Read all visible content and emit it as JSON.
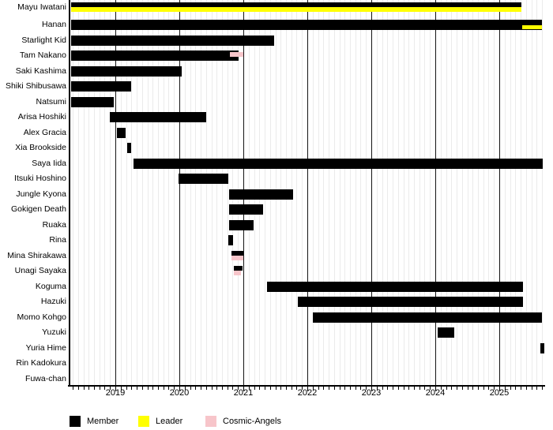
{
  "chart_data": {
    "type": "bar",
    "subtype": "membership-timeline-gantt",
    "title": "",
    "x_axis": {
      "unit": "year",
      "range": [
        2018.3,
        2025.7
      ],
      "ticks": [
        2019,
        2020,
        2021,
        2022,
        2023,
        2024,
        2025
      ],
      "minor_tick": "monthly",
      "grid": true
    },
    "legend": [
      {
        "key": "member",
        "label": "Member",
        "color": "#000000"
      },
      {
        "key": "leader",
        "label": "Leader",
        "color": "#ffff00"
      },
      {
        "key": "cosmic",
        "label": "Cosmic-Angels",
        "color": "#f7c5ca"
      }
    ],
    "legend_position": "bottom",
    "rows": [
      {
        "name": "Mayu Iwatani",
        "segments": [
          {
            "key": "member",
            "start": 2018.3,
            "end": 2025.35,
            "lane": "top"
          },
          {
            "key": "leader",
            "start": 2018.3,
            "end": 2025.35,
            "lane": "bottom"
          }
        ]
      },
      {
        "name": "Hanan",
        "segments": [
          {
            "key": "member",
            "start": 2018.3,
            "end": 2025.67,
            "lane": "full"
          },
          {
            "key": "leader",
            "start": 2025.36,
            "end": 2025.67,
            "lane": "inset-bottom"
          }
        ]
      },
      {
        "name": "Starlight Kid",
        "segments": [
          {
            "key": "member",
            "start": 2018.3,
            "end": 2021.48,
            "lane": "full"
          }
        ]
      },
      {
        "name": "Tam Nakano",
        "segments": [
          {
            "key": "member",
            "start": 2018.3,
            "end": 2020.93,
            "lane": "full"
          },
          {
            "key": "cosmic",
            "start": 2020.79,
            "end": 2021.0,
            "lane": "inset-mid"
          }
        ]
      },
      {
        "name": "Saki Kashima",
        "segments": [
          {
            "key": "member",
            "start": 2018.3,
            "end": 2020.04,
            "lane": "full"
          }
        ]
      },
      {
        "name": "Shiki Shibusawa",
        "segments": [
          {
            "key": "member",
            "start": 2018.3,
            "end": 2019.25,
            "lane": "full"
          }
        ]
      },
      {
        "name": "Natsumi",
        "segments": [
          {
            "key": "member",
            "start": 2018.3,
            "end": 2018.98,
            "lane": "full"
          }
        ]
      },
      {
        "name": "Arisa Hoshiki",
        "segments": [
          {
            "key": "member",
            "start": 2018.91,
            "end": 2020.42,
            "lane": "full"
          }
        ]
      },
      {
        "name": "Alex Gracia",
        "segments": [
          {
            "key": "member",
            "start": 2019.02,
            "end": 2019.16,
            "lane": "full"
          }
        ]
      },
      {
        "name": "Xia Brookside",
        "segments": [
          {
            "key": "member",
            "start": 2019.19,
            "end": 2019.25,
            "lane": "full"
          }
        ]
      },
      {
        "name": "Saya Iida",
        "segments": [
          {
            "key": "member",
            "start": 2019.28,
            "end": 2025.67,
            "lane": "full"
          }
        ]
      },
      {
        "name": "Itsuki Hoshino",
        "segments": [
          {
            "key": "member",
            "start": 2019.99,
            "end": 2020.77,
            "lane": "full"
          }
        ]
      },
      {
        "name": "Jungle Kyona",
        "segments": [
          {
            "key": "member",
            "start": 2020.78,
            "end": 2021.78,
            "lane": "full"
          }
        ]
      },
      {
        "name": "Gokigen Death",
        "segments": [
          {
            "key": "member",
            "start": 2020.78,
            "end": 2021.31,
            "lane": "full"
          }
        ]
      },
      {
        "name": "Ruaka",
        "segments": [
          {
            "key": "member",
            "start": 2020.78,
            "end": 2021.16,
            "lane": "full"
          }
        ]
      },
      {
        "name": "Rina",
        "segments": [
          {
            "key": "member",
            "start": 2020.77,
            "end": 2020.84,
            "lane": "full"
          }
        ]
      },
      {
        "name": "Mina Shirakawa",
        "segments": [
          {
            "key": "member",
            "start": 2020.81,
            "end": 2020.99,
            "lane": "top"
          },
          {
            "key": "cosmic",
            "start": 2020.81,
            "end": 2020.99,
            "lane": "bottom"
          }
        ]
      },
      {
        "name": "Unagi Sayaka",
        "segments": [
          {
            "key": "member",
            "start": 2020.85,
            "end": 2020.99,
            "lane": "top"
          },
          {
            "key": "cosmic",
            "start": 2020.85,
            "end": 2020.96,
            "lane": "bottom"
          }
        ]
      },
      {
        "name": "Koguma",
        "segments": [
          {
            "key": "member",
            "start": 2021.37,
            "end": 2025.37,
            "lane": "full"
          }
        ]
      },
      {
        "name": "Hazuki",
        "segments": [
          {
            "key": "member",
            "start": 2021.85,
            "end": 2025.37,
            "lane": "full"
          }
        ]
      },
      {
        "name": "Momo Kohgo",
        "segments": [
          {
            "key": "member",
            "start": 2022.09,
            "end": 2025.67,
            "lane": "full"
          }
        ]
      },
      {
        "name": "Yuzuki",
        "segments": [
          {
            "key": "member",
            "start": 2024.04,
            "end": 2024.3,
            "lane": "full"
          }
        ]
      },
      {
        "name": "Yuria Hime",
        "segments": [
          {
            "key": "member",
            "start": 2025.64,
            "end": 2025.7,
            "lane": "full"
          }
        ]
      },
      {
        "name": "Rin Kadokura",
        "segments": []
      },
      {
        "name": "Fuwa-chan",
        "segments": []
      }
    ]
  }
}
